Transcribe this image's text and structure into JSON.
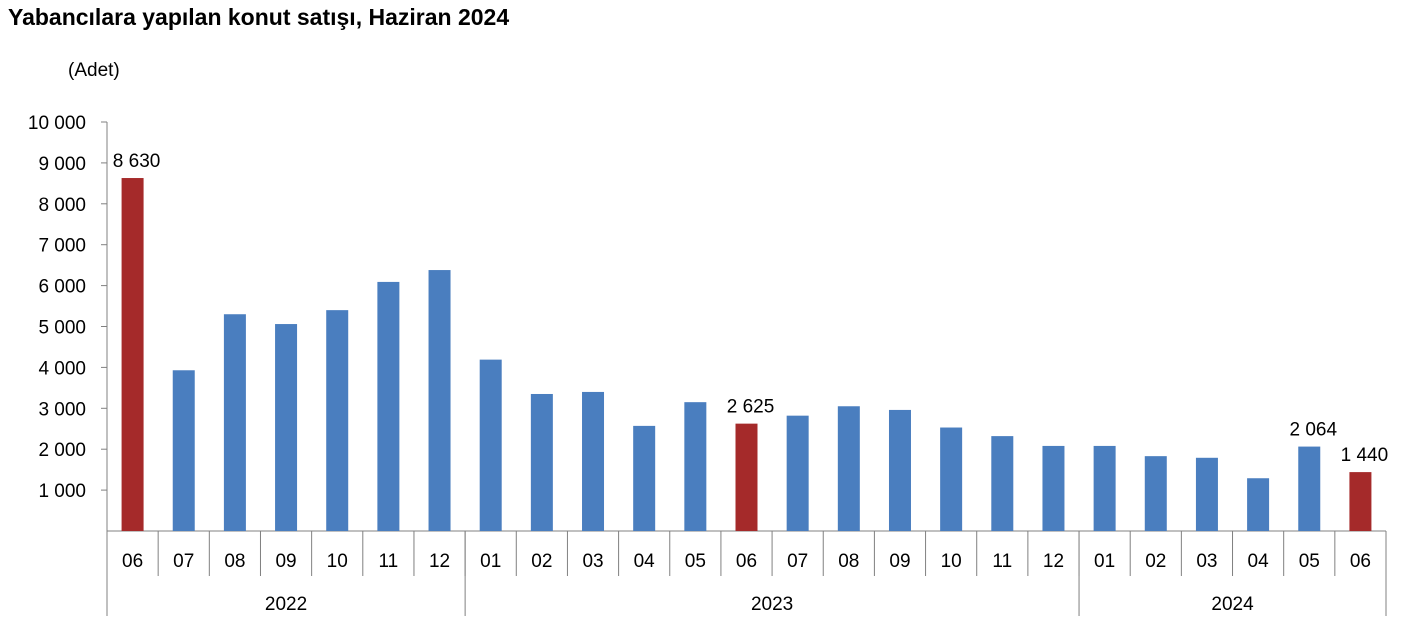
{
  "chart_data": {
    "type": "bar",
    "title": "Yabancılara yapılan konut satışı, Haziran 2024",
    "ylabel": "(Adet)",
    "ylim": [
      0,
      10000
    ],
    "yticks": [
      1000,
      2000,
      3000,
      4000,
      5000,
      6000,
      7000,
      8000,
      9000,
      10000
    ],
    "ytick_labels": [
      "1 000",
      "2 000",
      "3 000",
      "4 000",
      "5 000",
      "6 000",
      "7 000",
      "8 000",
      "9 000",
      "10 000"
    ],
    "grid": false,
    "categories": [
      "06",
      "07",
      "08",
      "09",
      "10",
      "11",
      "12",
      "01",
      "02",
      "03",
      "04",
      "05",
      "06",
      "07",
      "08",
      "09",
      "10",
      "11",
      "12",
      "01",
      "02",
      "03",
      "04",
      "05",
      "06"
    ],
    "years": [
      {
        "label": "2022",
        "count": 7
      },
      {
        "label": "2023",
        "count": 12
      },
      {
        "label": "2024",
        "count": 6
      }
    ],
    "values": [
      8630,
      3930,
      5300,
      5060,
      5400,
      6090,
      6380,
      4190,
      3350,
      3400,
      2570,
      3150,
      2625,
      2820,
      3050,
      2960,
      2530,
      2320,
      2080,
      2080,
      1830,
      1790,
      1290,
      2064,
      1440
    ],
    "highlight_indices": [
      0,
      12,
      24
    ],
    "data_labels": [
      {
        "index": 0,
        "text": "8 630"
      },
      {
        "index": 12,
        "text": "2 625"
      },
      {
        "index": 23,
        "text": "2 064"
      },
      {
        "index": 24,
        "text": "1 440"
      }
    ],
    "colors": {
      "bar": "#4a7ebf",
      "highlight": "#a52a2a",
      "axis": "#808080"
    }
  }
}
